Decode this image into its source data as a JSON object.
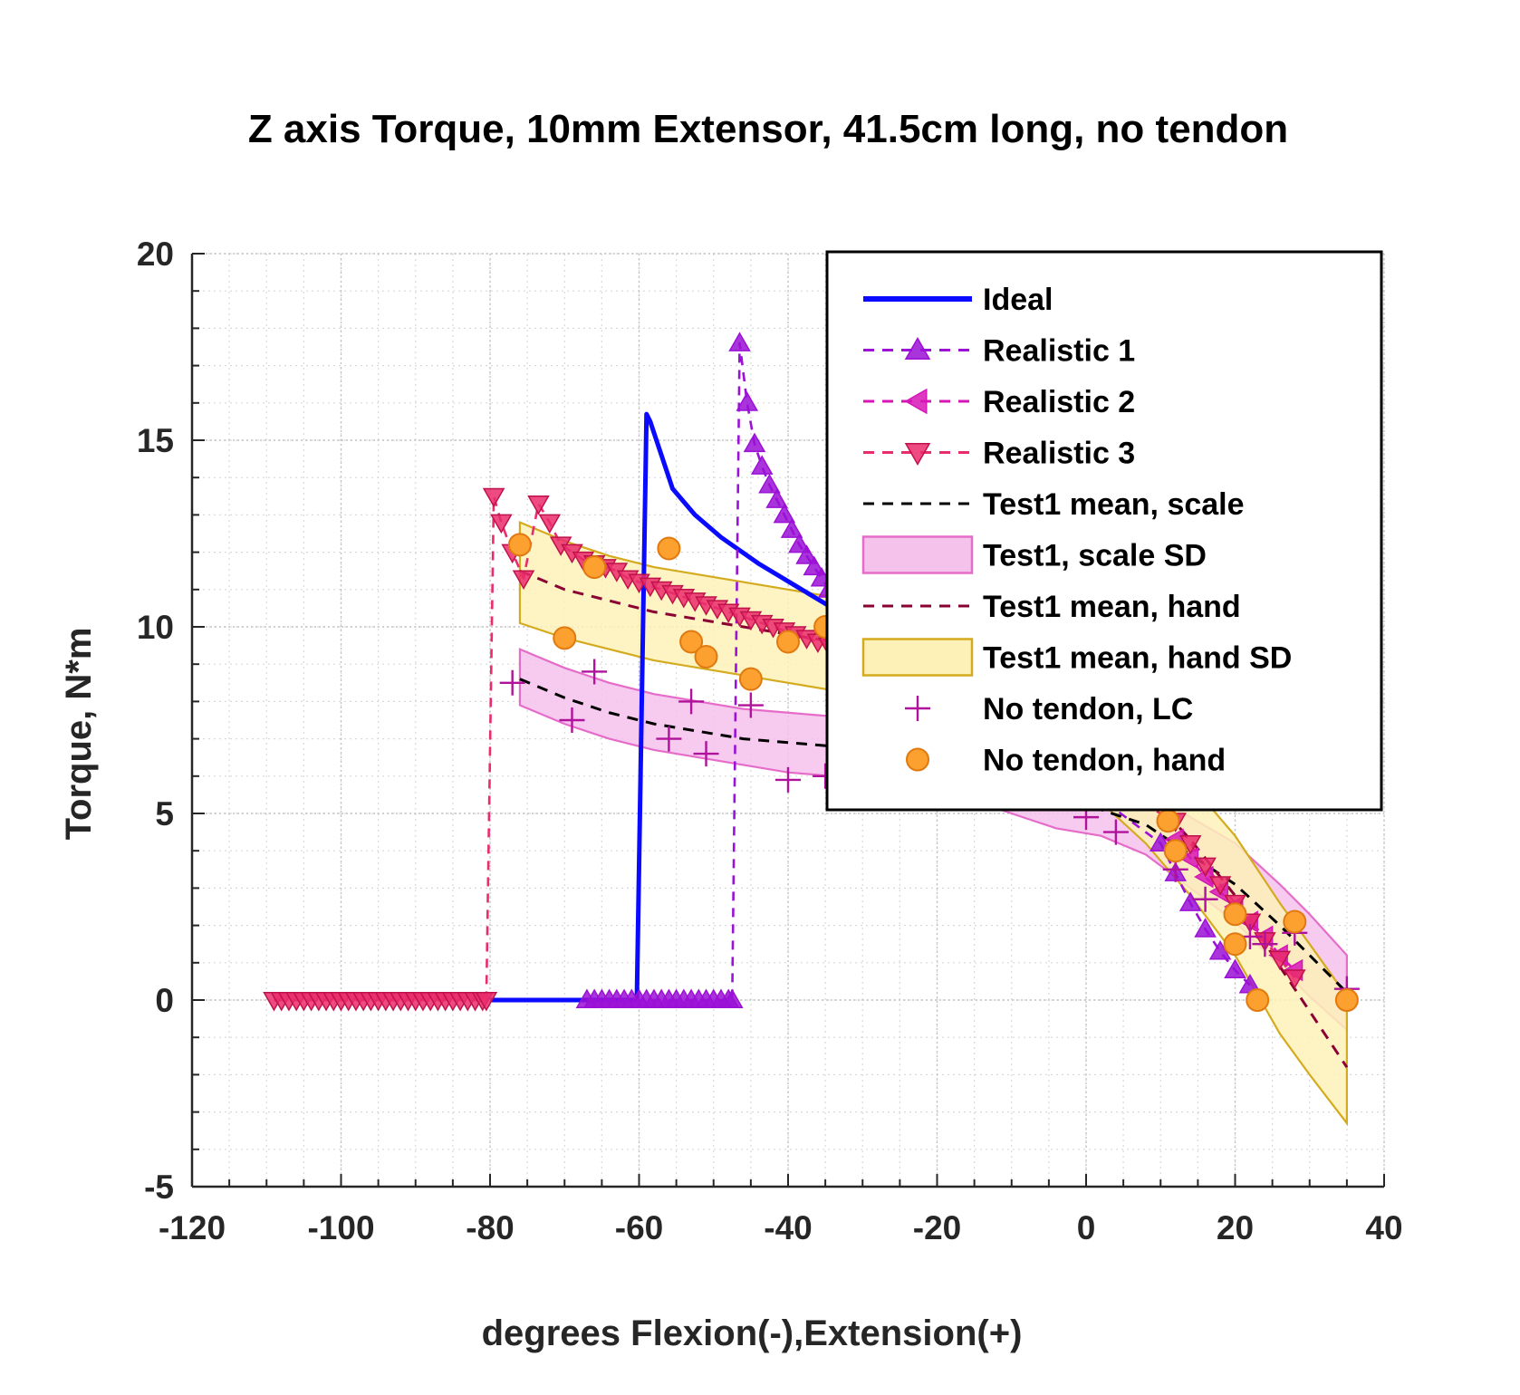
{
  "chart_data": {
    "type": "line",
    "title": "Z axis Torque, 10mm Extensor, 41.5cm long, no tendon",
    "xlabel": "degrees Flexion(-),Extension(+)",
    "ylabel": "Torque, N*m",
    "xlim": [
      -120,
      40
    ],
    "ylim": [
      -5,
      20
    ],
    "xticks": [
      "-120",
      "-100",
      "-80",
      "-60",
      "-40",
      "-20",
      "0",
      "20",
      "40"
    ],
    "yticks": [
      "-5",
      "0",
      "5",
      "10",
      "15",
      "20"
    ],
    "grid": true,
    "minor_grid": true,
    "legend_position": "top-right",
    "series": [
      {
        "name": "Ideal",
        "style": "solid-line",
        "color": "#0a0aff",
        "x": [
          -80,
          -60.3,
          -59,
          -58.5,
          -55.5,
          -52.5,
          -49,
          -44,
          -39,
          -34,
          -29,
          -24,
          -20
        ],
        "y": [
          0,
          0,
          15.7,
          15.5,
          13.7,
          13.0,
          12.4,
          11.7,
          11.1,
          10.5,
          10.0,
          9.6,
          9.3
        ]
      },
      {
        "name": "Realistic 1",
        "style": "dashed-marker",
        "marker": "triangle-up",
        "color": "#9b11d6",
        "x": [
          -67,
          -66,
          -65,
          -64,
          -63,
          -62,
          -61,
          -60,
          -59,
          -58,
          -57,
          -56,
          -55,
          -54,
          -53,
          -52,
          -51,
          -50,
          -49,
          -48,
          -47.5,
          -46.5,
          -45.5,
          -44.5,
          -43.5,
          -42.5,
          -41.5,
          -40.5,
          -39.5,
          -38.5,
          -37.5,
          -36.5,
          -35.5,
          -34.5,
          -33.5,
          10,
          12,
          14,
          16,
          18,
          20,
          22
        ],
        "y": [
          0,
          0,
          0,
          0,
          0,
          0,
          0,
          0,
          0,
          0,
          0,
          0,
          0,
          0,
          0,
          0,
          0,
          0,
          0,
          0,
          0,
          17.6,
          16.0,
          14.9,
          14.3,
          13.8,
          13.4,
          13.0,
          12.6,
          12.2,
          11.9,
          11.6,
          11.3,
          11.0,
          10.7,
          4.2,
          3.4,
          2.6,
          1.9,
          1.3,
          0.8,
          0.4
        ]
      },
      {
        "name": "Realistic 2",
        "style": "dashed-marker",
        "marker": "triangle-left",
        "color": "#d617b6",
        "x": [
          12,
          14,
          16,
          18,
          20,
          22,
          24,
          26,
          28
        ],
        "y": [
          4.3,
          3.8,
          3.3,
          2.9,
          2.5,
          2.1,
          1.7,
          1.2,
          0.8
        ]
      },
      {
        "name": "Realistic 3",
        "style": "dashed-marker",
        "marker": "triangle-down",
        "color": "#ea2c6c",
        "x": [
          -109,
          -108,
          -107,
          -106,
          -105,
          -104,
          -103,
          -102,
          -101,
          -100,
          -99,
          -98,
          -97,
          -96,
          -95,
          -94,
          -93,
          -92,
          -91,
          -90,
          -89,
          -88,
          -87,
          -86,
          -85,
          -84,
          -83,
          -82,
          -81,
          -80.5,
          -79.5,
          -78.5,
          -77,
          -75.5,
          -73.5,
          -72,
          -70.5,
          -69,
          -67.5,
          -66,
          -64.5,
          -63,
          -61.5,
          -60,
          -58.5,
          -57,
          -55.5,
          -54,
          -52.5,
          -51,
          -49.5,
          -48,
          -46.5,
          -45,
          -43.5,
          -42,
          -40.5,
          -39,
          -37.5,
          -36,
          -34.5,
          12,
          14,
          16,
          18,
          20,
          22,
          24,
          26,
          28
        ],
        "y": [
          0,
          0,
          0,
          0,
          0,
          0,
          0,
          0,
          0,
          0,
          0,
          0,
          0,
          0,
          0,
          0,
          0,
          0,
          0,
          0,
          0,
          0,
          0,
          0,
          0,
          0,
          0,
          0,
          0,
          0,
          13.5,
          12.8,
          12.0,
          11.3,
          13.3,
          12.8,
          12.2,
          12.0,
          11.8,
          11.7,
          11.6,
          11.5,
          11.3,
          11.2,
          11.1,
          11.0,
          10.9,
          10.8,
          10.7,
          10.6,
          10.5,
          10.4,
          10.3,
          10.2,
          10.1,
          10.0,
          9.9,
          9.8,
          9.7,
          9.6,
          9.5,
          4.8,
          4.2,
          3.6,
          3.1,
          2.6,
          2.1,
          1.6,
          1.1,
          0.6
        ]
      },
      {
        "name": "Test1 mean, scale",
        "style": "dashed",
        "color": "#000000",
        "x": [
          -76,
          -70,
          -64,
          -58,
          -52,
          -46,
          -40,
          -34,
          -28,
          -22,
          -16,
          -10,
          -4,
          2,
          8,
          14,
          20,
          26,
          30,
          35
        ],
        "y": [
          8.6,
          8.1,
          7.7,
          7.4,
          7.2,
          7.0,
          6.9,
          6.8,
          6.6,
          6.4,
          6.1,
          5.7,
          5.3,
          5.1,
          4.7,
          3.9,
          3.1,
          2.0,
          1.2,
          0.2
        ]
      },
      {
        "name": "Test1, scale SD",
        "style": "band",
        "color": "#f5c2ec",
        "stroke": "#e66cc9",
        "x": [
          -76,
          -70,
          -64,
          -58,
          -52,
          -46,
          -40,
          -34,
          -28,
          -22,
          -16,
          -10,
          -4,
          2,
          8,
          14,
          20,
          26,
          30,
          35
        ],
        "upper": [
          9.4,
          8.9,
          8.5,
          8.2,
          8.0,
          7.8,
          7.7,
          7.6,
          7.4,
          7.2,
          6.9,
          6.5,
          6.1,
          5.9,
          5.6,
          4.9,
          4.2,
          3.1,
          2.3,
          1.2
        ],
        "lower": [
          7.9,
          7.4,
          7.0,
          6.7,
          6.5,
          6.3,
          6.1,
          6.0,
          5.9,
          5.7,
          5.4,
          5.0,
          4.6,
          4.4,
          3.9,
          3.0,
          2.1,
          0.9,
          0.1,
          -0.8
        ]
      },
      {
        "name": "Test1 mean, hand",
        "style": "dashed",
        "color": "#8b0033",
        "x": [
          -76,
          -70,
          -64,
          -58,
          -52,
          -46,
          -40,
          -34,
          -28,
          -22,
          -16,
          -10,
          -4,
          2,
          8,
          14,
          20,
          26,
          30,
          35
        ],
        "y": [
          11.5,
          11.0,
          10.7,
          10.4,
          10.2,
          10.0,
          9.8,
          9.6,
          9.3,
          9.0,
          8.5,
          8.0,
          7.4,
          6.6,
          5.6,
          4.3,
          2.8,
          0.9,
          -0.3,
          -1.8
        ]
      },
      {
        "name": "Test1 mean, hand SD",
        "style": "band",
        "color": "#fdf1b8",
        "stroke": "#d4aa1e",
        "x": [
          -76,
          -70,
          -64,
          -58,
          -52,
          -46,
          -40,
          -34,
          -28,
          -22,
          -16,
          -10,
          -4,
          2,
          8,
          14,
          20,
          26,
          30,
          35
        ],
        "upper": [
          12.8,
          12.3,
          11.9,
          11.6,
          11.4,
          11.2,
          11.0,
          10.8,
          10.5,
          10.2,
          9.7,
          9.2,
          8.6,
          7.9,
          7.0,
          5.8,
          4.4,
          2.6,
          1.5,
          0.1
        ],
        "lower": [
          10.1,
          9.7,
          9.4,
          9.1,
          8.9,
          8.7,
          8.5,
          8.3,
          8.0,
          7.7,
          7.2,
          6.7,
          6.1,
          5.3,
          4.2,
          2.8,
          1.2,
          -0.9,
          -2.0,
          -3.3
        ]
      },
      {
        "name": "No tendon, LC",
        "style": "marker",
        "marker": "plus",
        "color": "#b0129b",
        "x": [
          -77,
          -69,
          -66,
          -56,
          -53,
          -51,
          -45,
          -40,
          -35,
          0,
          4,
          12,
          16,
          22,
          24,
          28,
          35
        ],
        "y": [
          8.5,
          7.5,
          8.8,
          7.0,
          8.0,
          6.6,
          7.9,
          5.9,
          6.0,
          4.9,
          4.5,
          3.5,
          2.7,
          1.7,
          1.5,
          1.8,
          0.3
        ]
      },
      {
        "name": "No tendon, hand",
        "style": "marker",
        "marker": "circle",
        "color": "#fca12f",
        "x": [
          -76,
          -70,
          -66,
          -56,
          -53,
          -51,
          -45,
          -40,
          -35,
          11,
          12,
          20,
          20,
          23,
          28,
          35
        ],
        "y": [
          12.2,
          9.7,
          11.6,
          12.1,
          9.6,
          9.2,
          8.6,
          9.6,
          10.0,
          4.8,
          4.0,
          2.3,
          1.5,
          0.0,
          2.1,
          0.0
        ]
      }
    ]
  }
}
